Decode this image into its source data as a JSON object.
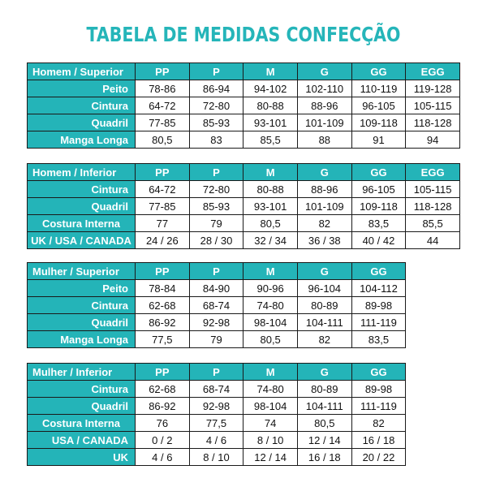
{
  "title": "TABELA DE MEDIDAS CONFECÇÃO",
  "colors": {
    "header_teal": "#24b4b8",
    "title_teal": "#25b5b9"
  },
  "tables": [
    {
      "header": [
        "Homem / Superior",
        "PP",
        "P",
        "M",
        "G",
        "GG",
        "EGG"
      ],
      "rows": [
        {
          "label": "Peito",
          "values": [
            "78-86",
            "86-94",
            "94-102",
            "102-110",
            "110-119",
            "119-128"
          ]
        },
        {
          "label": "Cintura",
          "values": [
            "64-72",
            "72-80",
            "80-88",
            "88-96",
            "96-105",
            "105-115"
          ]
        },
        {
          "label": "Quadril",
          "values": [
            "77-85",
            "85-93",
            "93-101",
            "101-109",
            "109-118",
            "118-128"
          ]
        },
        {
          "label": "Manga Longa",
          "values": [
            "80,5",
            "83",
            "85,5",
            "88",
            "91",
            "94"
          ]
        }
      ]
    },
    {
      "header": [
        "Homem / Inferior",
        "PP",
        "P",
        "M",
        "G",
        "GG",
        "EGG"
      ],
      "rows": [
        {
          "label": "Cintura",
          "values": [
            "64-72",
            "72-80",
            "80-88",
            "88-96",
            "96-105",
            "105-115"
          ]
        },
        {
          "label": "Quadril",
          "values": [
            "77-85",
            "85-93",
            "93-101",
            "101-109",
            "109-118",
            "118-128"
          ]
        },
        {
          "label": "Costura Interna",
          "values": [
            "77",
            "79",
            "80,5",
            "82",
            "83,5",
            "85,5"
          ]
        },
        {
          "label": "UK / USA / CANADA",
          "values": [
            "24 / 26",
            "28 / 30",
            "32 / 34",
            "36 / 38",
            "40 / 42",
            "44"
          ]
        }
      ]
    },
    {
      "header": [
        "Mulher / Superior",
        "PP",
        "P",
        "M",
        "G",
        "GG"
      ],
      "rows": [
        {
          "label": "Peito",
          "values": [
            "78-84",
            "84-90",
            "90-96",
            "96-104",
            "104-112"
          ]
        },
        {
          "label": "Cintura",
          "values": [
            "62-68",
            "68-74",
            "74-80",
            "80-89",
            "89-98"
          ]
        },
        {
          "label": "Quadril",
          "values": [
            "86-92",
            "92-98",
            "98-104",
            "104-111",
            "111-119"
          ]
        },
        {
          "label": "Manga Longa",
          "values": [
            "77,5",
            "79",
            "80,5",
            "82",
            "83,5"
          ]
        }
      ]
    },
    {
      "header": [
        "Mulher / Inferior",
        "PP",
        "P",
        "M",
        "G",
        "GG"
      ],
      "rows": [
        {
          "label": "Cintura",
          "values": [
            "62-68",
            "68-74",
            "74-80",
            "80-89",
            "89-98"
          ]
        },
        {
          "label": "Quadril",
          "values": [
            "86-92",
            "92-98",
            "98-104",
            "104-111",
            "111-119"
          ]
        },
        {
          "label": "Costura Interna",
          "values": [
            "76",
            "77,5",
            "74",
            "80,5",
            "82"
          ]
        },
        {
          "label": "USA / CANADA",
          "values": [
            "0 / 2",
            "4 / 6",
            "8 / 10",
            "12 / 14",
            "16 / 18"
          ]
        },
        {
          "label": "UK",
          "values": [
            "4 / 6",
            "8 / 10",
            "12 / 14",
            "16 / 18",
            "20 / 22"
          ]
        }
      ]
    }
  ]
}
